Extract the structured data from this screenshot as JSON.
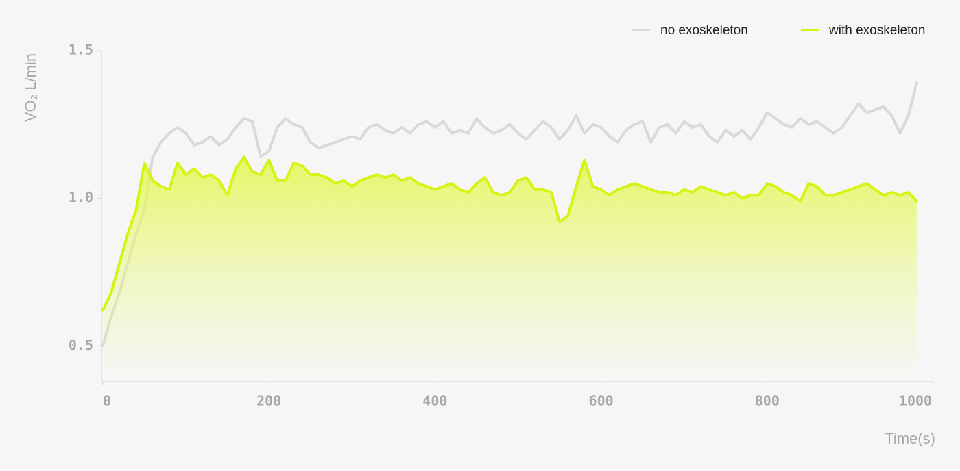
{
  "chart_data": {
    "type": "line",
    "y_label": "VO₂ L/min",
    "x_label": "Time(s)",
    "x": [
      0,
      10,
      20,
      30,
      40,
      50,
      60,
      70,
      80,
      90,
      100,
      110,
      120,
      130,
      140,
      150,
      160,
      170,
      180,
      190,
      200,
      210,
      220,
      230,
      240,
      250,
      260,
      270,
      280,
      290,
      300,
      310,
      320,
      330,
      340,
      350,
      360,
      370,
      380,
      390,
      400,
      410,
      420,
      430,
      440,
      450,
      460,
      470,
      480,
      490,
      500,
      510,
      520,
      530,
      540,
      550,
      560,
      570,
      580,
      590,
      600,
      610,
      620,
      630,
      640,
      650,
      660,
      670,
      680,
      690,
      700,
      710,
      720,
      730,
      740,
      750,
      760,
      770,
      780,
      790,
      800,
      810,
      820,
      830,
      840,
      850,
      860,
      870,
      880,
      890,
      900,
      910,
      920,
      930,
      940,
      950,
      960,
      970,
      980
    ],
    "series": [
      {
        "name": "no exoskeleton",
        "color": "#d9d9d9",
        "values": [
          0.5,
          0.6,
          0.68,
          0.78,
          0.88,
          0.96,
          1.14,
          1.19,
          1.22,
          1.24,
          1.22,
          1.18,
          1.19,
          1.21,
          1.18,
          1.2,
          1.24,
          1.27,
          1.26,
          1.14,
          1.16,
          1.24,
          1.27,
          1.25,
          1.24,
          1.19,
          1.17,
          1.18,
          1.19,
          1.2,
          1.21,
          1.2,
          1.24,
          1.25,
          1.23,
          1.22,
          1.24,
          1.22,
          1.25,
          1.26,
          1.24,
          1.26,
          1.22,
          1.23,
          1.22,
          1.27,
          1.24,
          1.22,
          1.23,
          1.25,
          1.22,
          1.2,
          1.23,
          1.26,
          1.24,
          1.2,
          1.23,
          1.28,
          1.22,
          1.25,
          1.24,
          1.21,
          1.19,
          1.23,
          1.25,
          1.26,
          1.19,
          1.24,
          1.25,
          1.22,
          1.26,
          1.24,
          1.25,
          1.21,
          1.19,
          1.23,
          1.21,
          1.23,
          1.2,
          1.24,
          1.29,
          1.27,
          1.25,
          1.24,
          1.27,
          1.25,
          1.26,
          1.24,
          1.22,
          1.24,
          1.28,
          1.32,
          1.29,
          1.3,
          1.31,
          1.28,
          1.22,
          1.28,
          1.39
        ]
      },
      {
        "name": "with exoskeleton",
        "color": "#d6f316",
        "area": true,
        "values": [
          0.62,
          0.68,
          0.78,
          0.88,
          0.96,
          1.12,
          1.06,
          1.04,
          1.03,
          1.12,
          1.08,
          1.1,
          1.07,
          1.08,
          1.06,
          1.01,
          1.1,
          1.14,
          1.09,
          1.08,
          1.13,
          1.06,
          1.06,
          1.12,
          1.11,
          1.08,
          1.08,
          1.07,
          1.05,
          1.06,
          1.04,
          1.06,
          1.07,
          1.08,
          1.07,
          1.08,
          1.06,
          1.07,
          1.05,
          1.04,
          1.03,
          1.04,
          1.05,
          1.03,
          1.02,
          1.05,
          1.07,
          1.02,
          1.01,
          1.02,
          1.06,
          1.07,
          1.03,
          1.03,
          1.02,
          0.92,
          0.94,
          1.04,
          1.13,
          1.04,
          1.03,
          1.01,
          1.03,
          1.04,
          1.05,
          1.04,
          1.03,
          1.02,
          1.02,
          1.01,
          1.03,
          1.02,
          1.04,
          1.03,
          1.02,
          1.01,
          1.02,
          1.0,
          1.01,
          1.01,
          1.05,
          1.04,
          1.02,
          1.01,
          0.99,
          1.05,
          1.04,
          1.01,
          1.01,
          1.02,
          1.03,
          1.04,
          1.05,
          1.03,
          1.01,
          1.02,
          1.01,
          1.02,
          0.99
        ]
      }
    ],
    "xlim": [
      0,
      1000
    ],
    "xticks": [
      0,
      200,
      400,
      600,
      800,
      1000
    ],
    "ylim": [
      0.38,
      1.5
    ],
    "yticks": [
      0.5,
      {
        "value": 1,
        "label": "1.0"
      },
      1.5
    ],
    "legend": "top-right"
  }
}
